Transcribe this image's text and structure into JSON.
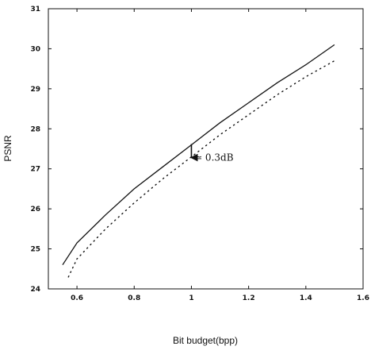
{
  "chart_data": {
    "type": "line",
    "title": "",
    "xlabel": "Bit budget(bpp)",
    "ylabel": "PSNR",
    "xlim": [
      0.5,
      1.6
    ],
    "ylim": [
      24,
      31
    ],
    "xticks": [
      0.6,
      0.8,
      1,
      1.2,
      1.4,
      1.6
    ],
    "yticks": [
      24,
      25,
      26,
      27,
      28,
      29,
      30,
      31
    ],
    "xtick_labels": [
      "0.6",
      "0.8",
      "1",
      "1.2",
      "1.4",
      "1.6"
    ],
    "ytick_labels": [
      "24",
      "25",
      "26",
      "27",
      "28",
      "29",
      "30",
      "31"
    ],
    "grid": false,
    "series": [
      {
        "style": "solid",
        "x": [
          0.55,
          0.6,
          0.7,
          0.8,
          0.9,
          1.0,
          1.1,
          1.2,
          1.3,
          1.4,
          1.5
        ],
        "y": [
          24.6,
          25.15,
          25.85,
          26.5,
          27.05,
          27.6,
          28.15,
          28.65,
          29.15,
          29.6,
          30.1
        ]
      },
      {
        "style": "dotted",
        "x": [
          0.57,
          0.6,
          0.7,
          0.8,
          0.9,
          1.0,
          1.1,
          1.2,
          1.3,
          1.4,
          1.5
        ],
        "y": [
          24.3,
          24.75,
          25.5,
          26.15,
          26.75,
          27.3,
          27.85,
          28.35,
          28.85,
          29.3,
          29.7
        ]
      }
    ],
    "annotations": [
      {
        "text": "≃ 0.3dB",
        "arrow_x": 1.0,
        "arrow_y_from": 27.62,
        "arrow_y_to": 27.28,
        "label_x": 1.01,
        "label_y": 27.2
      }
    ]
  }
}
